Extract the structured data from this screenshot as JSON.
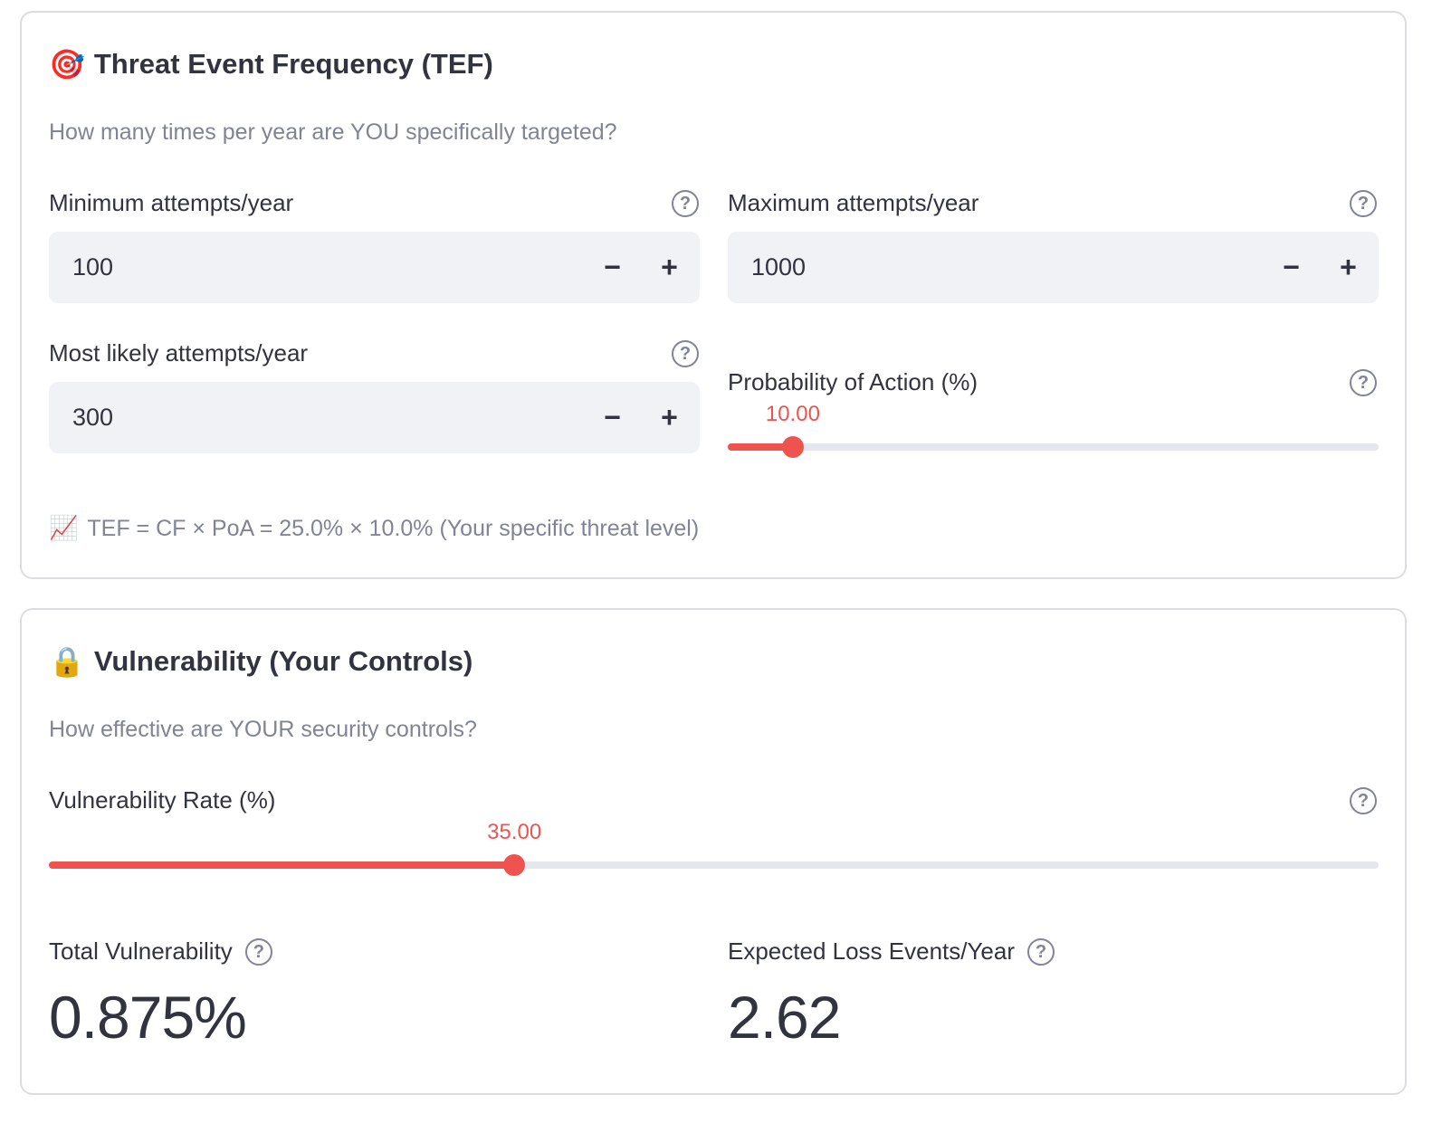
{
  "tef": {
    "title_emoji": "🎯",
    "title": "Threat Event Frequency (TEF)",
    "subtitle": "How many times per year are YOU specifically targeted?",
    "min_label": "Minimum attempts/year",
    "min_value": "100",
    "max_label": "Maximum attempts/year",
    "max_value": "1000",
    "likely_label": "Most likely attempts/year",
    "likely_value": "300",
    "poa_label": "Probability of Action (%)",
    "poa_value_text": "10.00",
    "poa_fraction": 0.1,
    "info_emoji": "📈",
    "info_text": "TEF = CF × PoA = 25.0% × 10.0% (Your specific threat level)"
  },
  "vuln": {
    "title_emoji": "🔒",
    "title": "Vulnerability (Your Controls)",
    "subtitle": "How effective are YOUR security controls?",
    "rate_label": "Vulnerability Rate (%)",
    "rate_value_text": "35.00",
    "rate_fraction": 0.35,
    "total_label": "Total Vulnerability",
    "total_value": "0.875%",
    "expected_label": "Expected Loss Events/Year",
    "expected_value": "2.62"
  },
  "controls": {
    "help_glyph": "?",
    "minus_glyph": "−",
    "plus_glyph": "+"
  },
  "colors": {
    "accent": "#ef5350",
    "input_bg": "#f0f2f6",
    "muted": "#808495",
    "text": "#31333f"
  }
}
